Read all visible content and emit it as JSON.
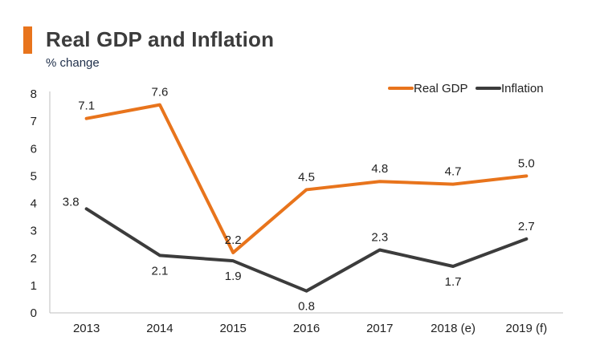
{
  "header": {
    "title": "Real GDP and Inflation",
    "subtitle": "% change"
  },
  "chart_data": {
    "type": "line",
    "title": "Real GDP and Inflation",
    "subtitle": "% change",
    "categories": [
      "2013",
      "2014",
      "2015",
      "2016",
      "2017",
      "2018 (e)",
      "2019 (f)"
    ],
    "ylim": [
      0,
      8
    ],
    "yticks": [
      0,
      1,
      2,
      3,
      4,
      5,
      6,
      7,
      8
    ],
    "grid": false,
    "legend_position": "top-right",
    "series": [
      {
        "name": "Real GDP",
        "color": "#e8741c",
        "values": [
          7.1,
          7.6,
          2.2,
          4.5,
          4.8,
          4.7,
          5.0
        ],
        "labels": [
          "7.1",
          "7.6",
          "2.2",
          "4.5",
          "4.8",
          "4.7",
          "5.0"
        ],
        "label_position": [
          "above",
          "above",
          "above",
          "above",
          "above",
          "above",
          "above"
        ]
      },
      {
        "name": "Inflation",
        "color": "#3c3c3c",
        "values": [
          3.8,
          2.1,
          1.9,
          0.8,
          2.3,
          1.7,
          2.7
        ],
        "labels": [
          "3.8",
          "2.1",
          "1.9",
          "0.8",
          "2.3",
          "1.7",
          "2.7"
        ],
        "label_position": [
          "left",
          "below",
          "below",
          "below",
          "above",
          "below",
          "above"
        ]
      }
    ]
  }
}
